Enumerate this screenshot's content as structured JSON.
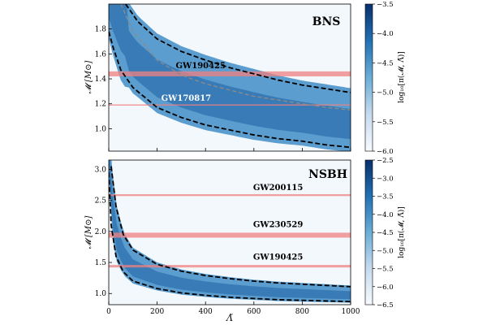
{
  "chart_data": [
    {
      "type": "heatmap",
      "id": "top",
      "title": "BNS",
      "xlabel": "",
      "ylabel": "𝓜 [M⊙]",
      "xlim": [
        0,
        1000
      ],
      "ylim": [
        0.82,
        2.0
      ],
      "yticks": [
        1.0,
        1.2,
        1.4,
        1.6,
        1.8
      ],
      "ytick_labels": [
        "1.0",
        "1.2",
        "1.4",
        "1.6",
        "1.8"
      ],
      "xticks": [
        0,
        200,
        400,
        600,
        800,
        1000
      ],
      "colorbar": {
        "label": "log₁₀[π(𝓜, Λ̃)]",
        "range": [
          -6.0,
          -3.5
        ],
        "ticks": [
          -6.0,
          -5.5,
          -5.0,
          -4.5,
          -4.0,
          -3.5
        ],
        "tick_labels": [
          "−6.0",
          "−5.5",
          "−5.0",
          "−4.5",
          "−4.0",
          "−3.5"
        ]
      },
      "bands": [
        {
          "label": "GW190425",
          "low": 1.42,
          "high": 1.46,
          "label_x": 380,
          "label_y": 1.51
        },
        {
          "label": "GW170817",
          "low": 1.185,
          "high": 1.195,
          "label_x": 320,
          "label_y": 1.25
        }
      ],
      "curves": [
        {
          "name": "upper-bound",
          "style": "dashed-black",
          "x": [
            70,
            120,
            200,
            300,
            400,
            500,
            600,
            700,
            800,
            900,
            1000
          ],
          "y": [
            2.0,
            1.86,
            1.72,
            1.62,
            1.55,
            1.49,
            1.44,
            1.39,
            1.35,
            1.32,
            1.29
          ]
        },
        {
          "name": "lower-bound",
          "style": "dashed-black",
          "x": [
            0,
            20,
            50,
            100,
            200,
            300,
            400,
            500,
            600,
            700,
            800,
            900,
            1000
          ],
          "y": [
            1.78,
            1.64,
            1.47,
            1.33,
            1.17,
            1.09,
            1.03,
            0.99,
            0.95,
            0.92,
            0.9,
            0.87,
            0.85
          ]
        },
        {
          "name": "median",
          "style": "dashed-gray",
          "x": [
            50,
            100,
            200,
            300,
            400,
            500,
            600,
            700,
            800,
            900,
            1000
          ],
          "y": [
            2.0,
            1.78,
            1.55,
            1.43,
            1.36,
            1.31,
            1.26,
            1.23,
            1.2,
            1.17,
            1.15
          ]
        }
      ]
    },
    {
      "type": "heatmap",
      "id": "bottom",
      "title": "NSBH",
      "xlabel": "Λ̃",
      "ylabel": "𝓜 [M⊙]",
      "xlim": [
        0,
        1000
      ],
      "ylim": [
        0.82,
        3.15
      ],
      "yticks": [
        1.0,
        1.5,
        2.0,
        2.5,
        3.0
      ],
      "ytick_labels": [
        "1.0",
        "1.5",
        "2.0",
        "2.5",
        "3.0"
      ],
      "xticks": [
        0,
        200,
        400,
        600,
        800,
        1000
      ],
      "xtick_labels": [
        "0",
        "200",
        "400",
        "600",
        "800",
        "1000"
      ],
      "colorbar": {
        "label": "log₁₀[π(𝓜, Λ̃)]",
        "range": [
          -6.5,
          -2.5
        ],
        "ticks": [
          -6.5,
          -6.0,
          -5.5,
          -5.0,
          -4.5,
          -4.0,
          -3.5,
          -3.0,
          -2.5
        ],
        "tick_labels": [
          "−6.5",
          "−6.0",
          "−5.5",
          "−5.0",
          "−4.5",
          "−4.0",
          "−3.5",
          "−3.0",
          "−2.5"
        ]
      },
      "bands": [
        {
          "label": "GW200115",
          "low": 2.57,
          "high": 2.6,
          "label_x": 700,
          "label_y": 2.72
        },
        {
          "label": "GW230529",
          "low": 1.9,
          "high": 1.98,
          "label_x": 700,
          "label_y": 2.12
        },
        {
          "label": "GW190425",
          "low": 1.42,
          "high": 1.46,
          "label_x": 700,
          "label_y": 1.6
        }
      ],
      "curves": [
        {
          "name": "upper-bound",
          "style": "dashed-black",
          "x": [
            10,
            30,
            60,
            100,
            200,
            300,
            400,
            500,
            600,
            700,
            800,
            900,
            1000
          ],
          "y": [
            3.05,
            2.4,
            1.95,
            1.7,
            1.47,
            1.36,
            1.29,
            1.24,
            1.2,
            1.17,
            1.15,
            1.13,
            1.11
          ]
        },
        {
          "name": "lower-bound",
          "style": "dashed-black",
          "x": [
            0,
            10,
            30,
            60,
            100,
            200,
            300,
            400,
            500,
            600,
            700,
            800,
            900,
            1000
          ],
          "y": [
            2.95,
            2.1,
            1.6,
            1.35,
            1.2,
            1.08,
            1.01,
            0.97,
            0.94,
            0.92,
            0.9,
            0.89,
            0.88,
            0.87
          ]
        }
      ]
    }
  ]
}
